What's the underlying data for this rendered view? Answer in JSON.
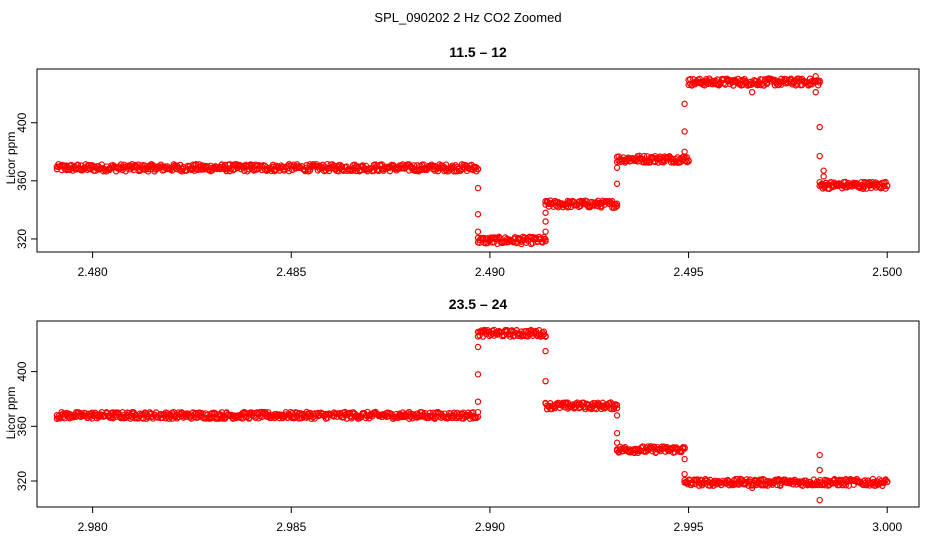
{
  "figure_title": "SPL_090202  2 Hz CO2 Zoomed",
  "chart_data": [
    {
      "type": "scatter",
      "title": "11.5 – 12",
      "ylabel": "Licor ppm",
      "xlabel": "",
      "xlim": [
        2.4786,
        2.5008
      ],
      "ylim": [
        311,
        437
      ],
      "xticks": [
        2.48,
        2.485,
        2.49,
        2.495,
        2.5
      ],
      "xtick_labels": [
        "2.480",
        "2.485",
        "2.490",
        "2.495",
        "2.500"
      ],
      "yticks": [
        320,
        360,
        400
      ],
      "ytick_labels": [
        "320",
        "360",
        "400"
      ],
      "color": "#ff0000",
      "marker": "open-circle",
      "grid": false,
      "segments": [
        {
          "x_start": 2.4791,
          "x_end": 2.4897,
          "y": 369
        },
        {
          "x_start": 2.4897,
          "x_end": 2.4914,
          "y": 319
        },
        {
          "x_start": 2.4914,
          "x_end": 2.4932,
          "y": 344
        },
        {
          "x_start": 2.4932,
          "x_end": 2.495,
          "y": 375
        },
        {
          "x_start": 2.495,
          "x_end": 2.4983,
          "y": 428
        },
        {
          "x_start": 2.4983,
          "x_end": 2.5,
          "y": 357
        }
      ],
      "points": [
        {
          "x": 2.4897,
          "y": 355
        },
        {
          "x": 2.4897,
          "y": 337
        },
        {
          "x": 2.4897,
          "y": 325
        },
        {
          "x": 2.4914,
          "y": 325
        },
        {
          "x": 2.4914,
          "y": 332
        },
        {
          "x": 2.4914,
          "y": 338
        },
        {
          "x": 2.4932,
          "y": 358
        },
        {
          "x": 2.4932,
          "y": 369
        },
        {
          "x": 2.4949,
          "y": 380
        },
        {
          "x": 2.4949,
          "y": 394
        },
        {
          "x": 2.4949,
          "y": 413
        },
        {
          "x": 2.4966,
          "y": 421
        },
        {
          "x": 2.4982,
          "y": 432
        },
        {
          "x": 2.4982,
          "y": 421
        },
        {
          "x": 2.4983,
          "y": 397
        },
        {
          "x": 2.4983,
          "y": 377
        },
        {
          "x": 2.4984,
          "y": 367
        },
        {
          "x": 2.4984,
          "y": 363
        }
      ]
    },
    {
      "type": "scatter",
      "title": "23.5 – 24",
      "ylabel": "Licor ppm",
      "xlabel": "",
      "xlim": [
        2.9786,
        3.0008
      ],
      "ylim": [
        301,
        437
      ],
      "xticks": [
        2.98,
        2.985,
        2.99,
        2.995,
        3.0
      ],
      "xtick_labels": [
        "2.980",
        "2.985",
        "2.990",
        "2.995",
        "3.000"
      ],
      "yticks": [
        320,
        360,
        400
      ],
      "ytick_labels": [
        "320",
        "360",
        "400"
      ],
      "color": "#ff0000",
      "marker": "open-circle",
      "grid": false,
      "segments": [
        {
          "x_start": 2.9791,
          "x_end": 2.9897,
          "y": 368
        },
        {
          "x_start": 2.9897,
          "x_end": 2.9914,
          "y": 428
        },
        {
          "x_start": 2.9914,
          "x_end": 2.9932,
          "y": 375
        },
        {
          "x_start": 2.9932,
          "x_end": 2.9949,
          "y": 343
        },
        {
          "x_start": 2.9949,
          "x_end": 3.0,
          "y": 319
        }
      ],
      "points": [
        {
          "x": 2.9897,
          "y": 378
        },
        {
          "x": 2.9897,
          "y": 398
        },
        {
          "x": 2.9897,
          "y": 418
        },
        {
          "x": 2.9914,
          "y": 415
        },
        {
          "x": 2.9914,
          "y": 393
        },
        {
          "x": 2.9932,
          "y": 368
        },
        {
          "x": 2.9932,
          "y": 355
        },
        {
          "x": 2.9932,
          "y": 348
        },
        {
          "x": 2.9949,
          "y": 336
        },
        {
          "x": 2.9949,
          "y": 325
        },
        {
          "x": 2.9966,
          "y": 315
        },
        {
          "x": 2.9983,
          "y": 339
        },
        {
          "x": 2.9983,
          "y": 328
        },
        {
          "x": 2.9983,
          "y": 306
        }
      ]
    }
  ]
}
